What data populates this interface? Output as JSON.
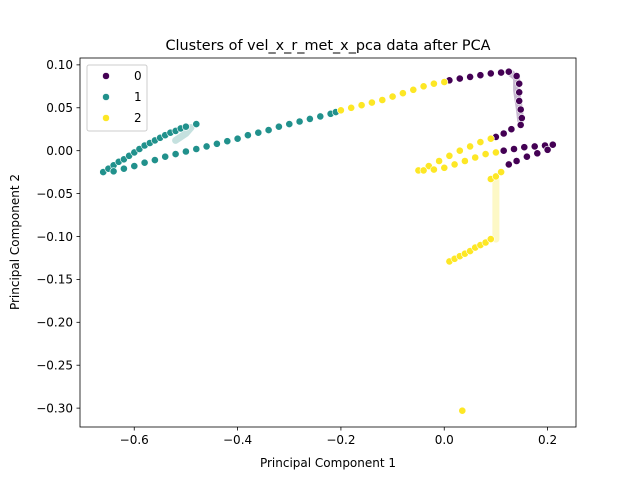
{
  "chart_data": {
    "type": "scatter",
    "title": "Clusters of vel_x_r_met_x_pca data after PCA",
    "xlabel": "Principal Component 1",
    "ylabel": "Principal Component 2",
    "xlim": [
      -0.705,
      0.255
    ],
    "ylim": [
      -0.322,
      0.108
    ],
    "xticks": [
      -0.6,
      -0.4,
      -0.2,
      0.0,
      0.2
    ],
    "xtick_labels": [
      "−0.6",
      "−0.4",
      "−0.2",
      "0.0",
      "0.2"
    ],
    "yticks": [
      0.1,
      0.05,
      0.0,
      -0.05,
      -0.1,
      -0.15,
      -0.2,
      -0.25,
      -0.3
    ],
    "ytick_labels": [
      "0.10",
      "0.05",
      "0.00",
      "−0.05",
      "−0.10",
      "−0.15",
      "−0.20",
      "−0.25",
      "−0.30"
    ],
    "grid": false,
    "legend": {
      "position": "top-left",
      "entries": [
        {
          "label": "0",
          "color": "#440154"
        },
        {
          "label": "1",
          "color": "#21918c"
        },
        {
          "label": "2",
          "color": "#fde725"
        }
      ]
    },
    "series": [
      {
        "name": "0",
        "color": "#440154",
        "points": [
          [
            0.01,
            0.082
          ],
          [
            0.03,
            0.084
          ],
          [
            0.05,
            0.086
          ],
          [
            0.07,
            0.088
          ],
          [
            0.09,
            0.09
          ],
          [
            0.11,
            0.091
          ],
          [
            0.125,
            0.092
          ],
          [
            0.14,
            0.087
          ],
          [
            0.145,
            0.078
          ],
          [
            0.145,
            0.068
          ],
          [
            0.145,
            0.058
          ],
          [
            0.148,
            0.048
          ],
          [
            0.15,
            0.038
          ],
          [
            0.148,
            0.03
          ],
          [
            0.13,
            0.025
          ],
          [
            0.115,
            0.02
          ],
          [
            0.1,
            0.016
          ],
          [
            0.115,
            0.0
          ],
          [
            0.135,
            0.002
          ],
          [
            0.155,
            0.004
          ],
          [
            0.175,
            0.005
          ],
          [
            0.195,
            0.006
          ],
          [
            0.21,
            0.007
          ],
          [
            0.2,
            0.001
          ],
          [
            0.18,
            -0.003
          ],
          [
            0.16,
            -0.007
          ],
          [
            0.14,
            -0.012
          ],
          [
            0.125,
            -0.016
          ]
        ]
      },
      {
        "name": "1",
        "color": "#21918c",
        "points": [
          [
            -0.66,
            -0.025
          ],
          [
            -0.65,
            -0.021
          ],
          [
            -0.64,
            -0.017
          ],
          [
            -0.63,
            -0.013
          ],
          [
            -0.62,
            -0.01
          ],
          [
            -0.61,
            -0.006
          ],
          [
            -0.6,
            -0.002
          ],
          [
            -0.59,
            0.002
          ],
          [
            -0.58,
            0.006
          ],
          [
            -0.57,
            0.009
          ],
          [
            -0.56,
            0.012
          ],
          [
            -0.55,
            0.015
          ],
          [
            -0.54,
            0.018
          ],
          [
            -0.53,
            0.021
          ],
          [
            -0.52,
            0.023
          ],
          [
            -0.51,
            0.026
          ],
          [
            -0.5,
            0.028
          ],
          [
            -0.48,
            0.031
          ],
          [
            -0.64,
            -0.024
          ],
          [
            -0.62,
            -0.021
          ],
          [
            -0.6,
            -0.018
          ],
          [
            -0.58,
            -0.014
          ],
          [
            -0.56,
            -0.011
          ],
          [
            -0.54,
            -0.007
          ],
          [
            -0.52,
            -0.004
          ],
          [
            -0.5,
            -0.001
          ],
          [
            -0.48,
            0.002
          ],
          [
            -0.46,
            0.005
          ],
          [
            -0.44,
            0.008
          ],
          [
            -0.42,
            0.011
          ],
          [
            -0.4,
            0.014
          ],
          [
            -0.38,
            0.018
          ],
          [
            -0.36,
            0.021
          ],
          [
            -0.34,
            0.024
          ],
          [
            -0.32,
            0.028
          ],
          [
            -0.3,
            0.031
          ],
          [
            -0.28,
            0.034
          ],
          [
            -0.26,
            0.037
          ],
          [
            -0.24,
            0.04
          ],
          [
            -0.22,
            0.043
          ],
          [
            -0.21,
            0.045
          ]
        ]
      },
      {
        "name": "2",
        "color": "#fde725",
        "points": [
          [
            -0.2,
            0.047
          ],
          [
            -0.18,
            0.05
          ],
          [
            -0.16,
            0.053
          ],
          [
            -0.14,
            0.056
          ],
          [
            -0.12,
            0.059
          ],
          [
            -0.1,
            0.063
          ],
          [
            -0.08,
            0.067
          ],
          [
            -0.06,
            0.071
          ],
          [
            -0.04,
            0.075
          ],
          [
            -0.02,
            0.078
          ],
          [
            0.0,
            0.08
          ],
          [
            -0.05,
            -0.023
          ],
          [
            -0.03,
            -0.018
          ],
          [
            -0.01,
            -0.012
          ],
          [
            0.01,
            -0.006
          ],
          [
            0.03,
            0.0
          ],
          [
            0.05,
            0.005
          ],
          [
            0.07,
            0.01
          ],
          [
            0.09,
            0.014
          ],
          [
            -0.04,
            -0.023
          ],
          [
            -0.02,
            -0.022
          ],
          [
            0.0,
            -0.02
          ],
          [
            0.02,
            -0.016
          ],
          [
            0.04,
            -0.012
          ],
          [
            0.06,
            -0.008
          ],
          [
            0.08,
            -0.004
          ],
          [
            0.1,
            -0.002
          ],
          [
            0.09,
            -0.033
          ],
          [
            0.1,
            -0.03
          ],
          [
            0.11,
            -0.025
          ],
          [
            0.01,
            -0.129
          ],
          [
            0.02,
            -0.126
          ],
          [
            0.03,
            -0.123
          ],
          [
            0.04,
            -0.12
          ],
          [
            0.05,
            -0.117
          ],
          [
            0.06,
            -0.113
          ],
          [
            0.07,
            -0.11
          ],
          [
            0.08,
            -0.107
          ],
          [
            0.09,
            -0.103
          ],
          [
            0.035,
            -0.303
          ]
        ]
      }
    ]
  }
}
